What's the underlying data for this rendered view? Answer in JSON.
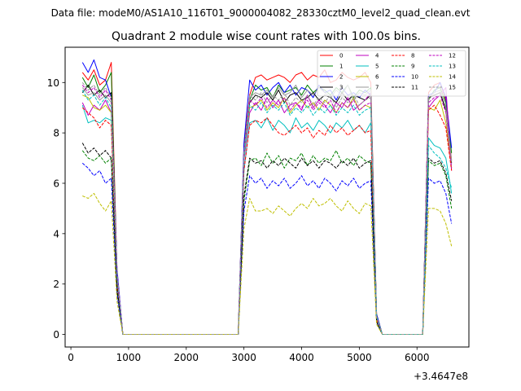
{
  "chart_data": {
    "type": "line",
    "suptitle": "Data file: modeM0/AS1A10_116T01_9000004082_28330cztM0_level2_quad_clean.evt",
    "title": "Quadrant 2 module wise count rates with 100.0s bins.",
    "xlabel": "",
    "ylabel": "",
    "x_offset_label": "+3.4647e8",
    "xlim": [
      -100,
      6900
    ],
    "ylim": [
      -0.5,
      11.4
    ],
    "x_ticks": [
      0,
      1000,
      2000,
      3000,
      4000,
      5000,
      6000
    ],
    "x_tick_labels": [
      "0",
      "1000",
      "2000",
      "3000",
      "4000",
      "5000",
      "6000"
    ],
    "y_ticks": [
      0,
      2,
      4,
      6,
      8,
      10
    ],
    "y_tick_labels": [
      "0",
      "2",
      "4",
      "6",
      "8",
      "10"
    ],
    "grid": false,
    "legend_position": "top-right",
    "legend_columns": 4,
    "x": [
      200,
      300,
      400,
      500,
      600,
      700,
      800,
      900,
      1000,
      1100,
      1200,
      1300,
      1400,
      1500,
      1600,
      1700,
      1800,
      1900,
      2000,
      2100,
      2200,
      2300,
      2400,
      2500,
      2600,
      2700,
      2800,
      2900,
      3000,
      3100,
      3200,
      3300,
      3400,
      3500,
      3600,
      3700,
      3800,
      3900,
      4000,
      4100,
      4200,
      4300,
      4400,
      4500,
      4600,
      4700,
      4800,
      4900,
      5000,
      5100,
      5200,
      5300,
      5400,
      5500,
      5600,
      5700,
      5800,
      5900,
      6000,
      6100,
      6200,
      6300,
      6400,
      6500,
      6600
    ],
    "series": [
      {
        "name": "0",
        "color": "#ff0000",
        "dash": "solid",
        "values": [
          10.4,
          10.1,
          10.5,
          9.9,
          10.1,
          10.8,
          2.5,
          0.0,
          0.0,
          0.0,
          0.0,
          0.0,
          0.0,
          0.0,
          0.0,
          0.0,
          0.0,
          0.0,
          0.0,
          0.0,
          0.0,
          0.0,
          0.0,
          0.0,
          0.0,
          0.0,
          0.0,
          0.0,
          7.5,
          9.5,
          10.2,
          10.3,
          10.1,
          10.2,
          10.3,
          10.2,
          10.0,
          10.3,
          10.4,
          10.1,
          10.3,
          10.2,
          10.5,
          10.0,
          10.1,
          10.4,
          10.2,
          10.1,
          10.2,
          10.4,
          10.0,
          0.8,
          0.0,
          0.0,
          0.0,
          0.0,
          0.0,
          0.0,
          0.0,
          0.0,
          9.6,
          9.9,
          10.0,
          9.3,
          6.9
        ]
      },
      {
        "name": "1",
        "color": "#008000",
        "dash": "solid",
        "values": [
          10.2,
          9.8,
          10.3,
          9.6,
          9.9,
          10.4,
          2.4,
          0.0,
          0.0,
          0.0,
          0.0,
          0.0,
          0.0,
          0.0,
          0.0,
          0.0,
          0.0,
          0.0,
          0.0,
          0.0,
          0.0,
          0.0,
          0.0,
          0.0,
          0.0,
          0.0,
          0.0,
          0.0,
          7.3,
          9.3,
          9.9,
          9.7,
          9.8,
          9.4,
          9.9,
          9.6,
          9.7,
          9.8,
          9.5,
          9.9,
          9.6,
          9.8,
          9.7,
          9.5,
          9.8,
          9.6,
          9.9,
          9.4,
          9.7,
          9.6,
          9.8,
          0.8,
          0.0,
          0.0,
          0.0,
          0.0,
          0.0,
          0.0,
          0.0,
          0.0,
          9.3,
          9.7,
          9.8,
          9.2,
          7.2
        ]
      },
      {
        "name": "2",
        "color": "#0000ff",
        "dash": "solid",
        "values": [
          10.8,
          10.4,
          10.9,
          10.2,
          10.1,
          9.4,
          2.6,
          0.0,
          0.0,
          0.0,
          0.0,
          0.0,
          0.0,
          0.0,
          0.0,
          0.0,
          0.0,
          0.0,
          0.0,
          0.0,
          0.0,
          0.0,
          0.0,
          0.0,
          0.0,
          0.0,
          0.0,
          0.0,
          7.6,
          10.1,
          9.7,
          9.9,
          9.5,
          9.8,
          10.0,
          9.6,
          9.9,
          9.5,
          9.8,
          9.7,
          9.4,
          9.9,
          9.6,
          9.7,
          9.3,
          9.8,
          9.5,
          9.6,
          9.4,
          9.7,
          9.5,
          0.8,
          0.0,
          0.0,
          0.0,
          0.0,
          0.0,
          0.0,
          0.0,
          0.0,
          9.5,
          9.6,
          10.0,
          9.4,
          7.4
        ]
      },
      {
        "name": "3",
        "color": "#000000",
        "dash": "solid",
        "values": [
          9.6,
          9.9,
          9.5,
          9.7,
          9.4,
          9.6,
          2.3,
          0.0,
          0.0,
          0.0,
          0.0,
          0.0,
          0.0,
          0.0,
          0.0,
          0.0,
          0.0,
          0.0,
          0.0,
          0.0,
          0.0,
          0.0,
          0.0,
          0.0,
          0.0,
          0.0,
          0.0,
          0.0,
          7.0,
          9.2,
          9.5,
          9.4,
          9.6,
          9.3,
          9.7,
          9.2,
          9.5,
          9.6,
          9.3,
          9.4,
          9.6,
          9.3,
          9.5,
          9.4,
          9.2,
          9.6,
          9.3,
          9.5,
          9.4,
          9.3,
          9.5,
          0.7,
          0.0,
          0.0,
          0.0,
          0.0,
          0.0,
          0.0,
          0.0,
          0.0,
          9.4,
          9.5,
          9.6,
          8.9,
          6.8
        ]
      },
      {
        "name": "4",
        "color": "#bf00bf",
        "dash": "solid",
        "values": [
          9.2,
          8.7,
          9.1,
          8.9,
          9.3,
          8.8,
          2.2,
          0.0,
          0.0,
          0.0,
          0.0,
          0.0,
          0.0,
          0.0,
          0.0,
          0.0,
          0.0,
          0.0,
          0.0,
          0.0,
          0.0,
          0.0,
          0.0,
          0.0,
          0.0,
          0.0,
          0.0,
          0.0,
          6.9,
          8.8,
          9.2,
          8.9,
          9.4,
          9.0,
          9.3,
          8.8,
          9.1,
          9.2,
          8.9,
          9.5,
          9.0,
          9.3,
          9.1,
          8.8,
          9.2,
          9.0,
          9.4,
          8.9,
          9.1,
          9.3,
          9.6,
          0.7,
          0.0,
          0.0,
          0.0,
          0.0,
          0.0,
          0.0,
          0.0,
          0.0,
          9.0,
          9.3,
          9.5,
          9.8,
          6.5
        ]
      },
      {
        "name": "5",
        "color": "#00bfbf",
        "dash": "solid",
        "values": [
          9.1,
          8.4,
          8.5,
          8.4,
          8.6,
          8.5,
          2.1,
          0.0,
          0.0,
          0.0,
          0.0,
          0.0,
          0.0,
          0.0,
          0.0,
          0.0,
          0.0,
          0.0,
          0.0,
          0.0,
          0.0,
          0.0,
          0.0,
          0.0,
          0.0,
          0.0,
          0.0,
          0.0,
          6.5,
          8.4,
          8.5,
          8.2,
          8.6,
          8.1,
          8.5,
          8.3,
          8.0,
          8.6,
          8.2,
          8.4,
          8.1,
          8.5,
          8.3,
          8.0,
          8.4,
          8.2,
          8.5,
          8.1,
          8.3,
          8.0,
          8.4,
          0.7,
          0.0,
          0.0,
          0.0,
          0.0,
          0.0,
          0.0,
          0.0,
          0.0,
          7.8,
          7.5,
          7.4,
          7.0,
          5.6
        ]
      },
      {
        "name": "6",
        "color": "#bfbf00",
        "dash": "solid",
        "values": [
          9.5,
          9.4,
          9.0,
          8.9,
          9.1,
          8.8,
          2.3,
          0.0,
          0.0,
          0.0,
          0.0,
          0.0,
          0.0,
          0.0,
          0.0,
          0.0,
          0.0,
          0.0,
          0.0,
          0.0,
          0.0,
          0.0,
          0.0,
          0.0,
          0.0,
          0.0,
          0.0,
          0.0,
          7.0,
          9.0,
          9.1,
          9.3,
          8.9,
          9.2,
          9.0,
          9.4,
          8.8,
          9.1,
          9.3,
          9.0,
          9.2,
          8.9,
          9.3,
          9.1,
          8.8,
          9.2,
          9.0,
          9.4,
          8.9,
          9.1,
          9.0,
          0.7,
          0.0,
          0.0,
          0.0,
          0.0,
          0.0,
          0.0,
          0.0,
          0.0,
          9.0,
          8.9,
          9.3,
          8.4,
          6.6
        ]
      },
      {
        "name": "7",
        "color": "#999999",
        "dash": "solid",
        "values": [
          9.8,
          9.5,
          9.6,
          9.3,
          9.5,
          9.2,
          2.4,
          0.0,
          0.0,
          0.0,
          0.0,
          0.0,
          0.0,
          0.0,
          0.0,
          0.0,
          0.0,
          0.0,
          0.0,
          0.0,
          0.0,
          0.0,
          0.0,
          0.0,
          0.0,
          0.0,
          0.0,
          0.0,
          7.2,
          9.4,
          9.6,
          9.5,
          9.7,
          9.4,
          9.8,
          9.5,
          9.6,
          9.9,
          9.4,
          9.7,
          9.5,
          9.8,
          9.6,
          9.4,
          9.7,
          9.5,
          9.9,
          9.3,
          9.6,
          9.5,
          9.7,
          0.7,
          0.0,
          0.0,
          0.0,
          0.0,
          0.0,
          0.0,
          0.0,
          0.0,
          9.4,
          9.6,
          9.7,
          9.0,
          6.9
        ]
      },
      {
        "name": "8",
        "color": "#ff0000",
        "dash": "dashed",
        "values": [
          9.0,
          8.8,
          8.6,
          8.2,
          8.5,
          8.3,
          2.0,
          0.0,
          0.0,
          0.0,
          0.0,
          0.0,
          0.0,
          0.0,
          0.0,
          0.0,
          0.0,
          0.0,
          0.0,
          0.0,
          0.0,
          0.0,
          0.0,
          0.0,
          0.0,
          0.0,
          0.0,
          0.0,
          6.5,
          8.3,
          8.5,
          8.4,
          8.6,
          8.3,
          8.0,
          7.9,
          8.1,
          8.3,
          8.0,
          8.2,
          7.8,
          8.1,
          7.9,
          8.3,
          8.0,
          8.2,
          7.9,
          8.1,
          8.3,
          8.0,
          8.1,
          0.6,
          0.0,
          0.0,
          0.0,
          0.0,
          0.0,
          0.0,
          0.0,
          0.0,
          8.9,
          9.1,
          8.7,
          8.2,
          6.5
        ]
      },
      {
        "name": "9",
        "color": "#008000",
        "dash": "dashed",
        "values": [
          7.3,
          7.0,
          6.9,
          7.1,
          6.8,
          7.0,
          1.7,
          0.0,
          0.0,
          0.0,
          0.0,
          0.0,
          0.0,
          0.0,
          0.0,
          0.0,
          0.0,
          0.0,
          0.0,
          0.0,
          0.0,
          0.0,
          0.0,
          0.0,
          0.0,
          0.0,
          0.0,
          0.0,
          5.3,
          6.9,
          7.0,
          6.7,
          7.2,
          6.8,
          7.1,
          6.6,
          7.0,
          6.9,
          7.2,
          6.7,
          7.1,
          6.8,
          7.0,
          6.9,
          7.3,
          6.8,
          7.0,
          6.7,
          7.1,
          6.9,
          6.8,
          0.5,
          0.0,
          0.0,
          0.0,
          0.0,
          0.0,
          0.0,
          0.0,
          0.0,
          6.9,
          6.7,
          6.8,
          6.3,
          5.0
        ]
      },
      {
        "name": "10",
        "color": "#0000ff",
        "dash": "dashed",
        "values": [
          6.8,
          6.6,
          6.3,
          6.5,
          6.0,
          6.2,
          1.6,
          0.0,
          0.0,
          0.0,
          0.0,
          0.0,
          0.0,
          0.0,
          0.0,
          0.0,
          0.0,
          0.0,
          0.0,
          0.0,
          0.0,
          0.0,
          0.0,
          0.0,
          0.0,
          0.0,
          0.0,
          0.0,
          4.9,
          6.3,
          6.0,
          6.2,
          5.8,
          6.1,
          5.9,
          6.2,
          5.8,
          6.0,
          6.3,
          5.9,
          6.1,
          5.8,
          6.2,
          6.0,
          5.7,
          6.1,
          5.9,
          6.2,
          5.8,
          6.0,
          6.1,
          0.5,
          0.0,
          0.0,
          0.0,
          0.0,
          0.0,
          0.0,
          0.0,
          0.0,
          6.2,
          6.0,
          6.1,
          5.6,
          4.4
        ]
      },
      {
        "name": "11",
        "color": "#000000",
        "dash": "dashed",
        "values": [
          7.6,
          7.2,
          7.4,
          7.1,
          7.3,
          7.0,
          1.8,
          0.0,
          0.0,
          0.0,
          0.0,
          0.0,
          0.0,
          0.0,
          0.0,
          0.0,
          0.0,
          0.0,
          0.0,
          0.0,
          0.0,
          0.0,
          0.0,
          0.0,
          0.0,
          0.0,
          0.0,
          0.0,
          5.5,
          7.0,
          6.8,
          6.9,
          6.6,
          6.9,
          6.7,
          7.0,
          6.8,
          6.6,
          7.0,
          6.7,
          6.9,
          6.6,
          6.9,
          6.8,
          6.6,
          6.9,
          6.7,
          7.0,
          6.6,
          6.8,
          6.9,
          0.5,
          0.0,
          0.0,
          0.0,
          0.0,
          0.0,
          0.0,
          0.0,
          0.0,
          7.0,
          6.8,
          6.9,
          6.4,
          5.3
        ]
      },
      {
        "name": "12",
        "color": "#bf00bf",
        "dash": "dashed",
        "values": [
          9.9,
          9.6,
          9.8,
          9.4,
          9.7,
          9.3,
          2.4,
          0.0,
          0.0,
          0.0,
          0.0,
          0.0,
          0.0,
          0.0,
          0.0,
          0.0,
          0.0,
          0.0,
          0.0,
          0.0,
          0.0,
          0.0,
          0.0,
          0.0,
          0.0,
          0.0,
          0.0,
          0.0,
          7.1,
          9.3,
          9.1,
          9.4,
          9.0,
          9.3,
          9.1,
          9.4,
          8.9,
          9.2,
          9.0,
          9.3,
          8.9,
          9.2,
          9.0,
          9.3,
          8.8,
          9.2,
          9.0,
          9.3,
          8.9,
          9.1,
          9.2,
          0.7,
          0.0,
          0.0,
          0.0,
          0.0,
          0.0,
          0.0,
          0.0,
          0.0,
          9.2,
          9.4,
          9.5,
          8.8,
          6.6
        ]
      },
      {
        "name": "13",
        "color": "#00bfbf",
        "dash": "dashed",
        "values": [
          9.7,
          9.3,
          9.5,
          9.1,
          9.4,
          9.0,
          2.3,
          0.0,
          0.0,
          0.0,
          0.0,
          0.0,
          0.0,
          0.0,
          0.0,
          0.0,
          0.0,
          0.0,
          0.0,
          0.0,
          0.0,
          0.0,
          0.0,
          0.0,
          0.0,
          0.0,
          0.0,
          0.0,
          7.0,
          9.1,
          8.9,
          9.2,
          8.8,
          9.1,
          8.9,
          9.2,
          8.7,
          9.0,
          8.8,
          9.1,
          8.7,
          9.0,
          8.8,
          9.1,
          8.7,
          9.0,
          8.8,
          9.1,
          8.7,
          8.9,
          9.0,
          0.7,
          0.0,
          0.0,
          0.0,
          0.0,
          0.0,
          0.0,
          0.0,
          0.0,
          7.5,
          7.2,
          7.0,
          6.6,
          5.8
        ]
      },
      {
        "name": "14",
        "color": "#bfbf00",
        "dash": "dashed",
        "values": [
          5.5,
          5.4,
          5.6,
          5.2,
          4.9,
          5.3,
          1.3,
          0.0,
          0.0,
          0.0,
          0.0,
          0.0,
          0.0,
          0.0,
          0.0,
          0.0,
          0.0,
          0.0,
          0.0,
          0.0,
          0.0,
          0.0,
          0.0,
          0.0,
          0.0,
          0.0,
          0.0,
          0.0,
          4.2,
          5.4,
          4.9,
          4.9,
          5.0,
          4.8,
          5.1,
          4.9,
          4.7,
          5.0,
          5.2,
          5.0,
          5.4,
          5.1,
          5.2,
          5.4,
          5.1,
          4.9,
          5.3,
          5.0,
          4.8,
          5.2,
          5.1,
          0.4,
          0.0,
          0.0,
          0.0,
          0.0,
          0.0,
          0.0,
          0.0,
          0.0,
          5.0,
          5.0,
          4.9,
          4.4,
          3.5
        ]
      },
      {
        "name": "15",
        "color": "#999999",
        "dash": "dashed",
        "values": [
          10.0,
          9.7,
          9.9,
          9.5,
          9.8,
          9.4,
          2.4,
          0.0,
          0.0,
          0.0,
          0.0,
          0.0,
          0.0,
          0.0,
          0.0,
          0.0,
          0.0,
          0.0,
          0.0,
          0.0,
          0.0,
          0.0,
          0.0,
          0.0,
          0.0,
          0.0,
          0.0,
          0.0,
          7.2,
          9.5,
          9.3,
          9.6,
          9.2,
          9.5,
          9.3,
          9.6,
          9.1,
          9.4,
          9.2,
          9.5,
          9.1,
          9.4,
          9.2,
          9.5,
          9.0,
          9.4,
          9.2,
          9.5,
          9.1,
          9.3,
          9.4,
          0.7,
          0.0,
          0.0,
          0.0,
          0.0,
          0.0,
          0.0,
          0.0,
          0.0,
          9.3,
          9.6,
          9.7,
          9.0,
          6.8
        ]
      }
    ]
  }
}
